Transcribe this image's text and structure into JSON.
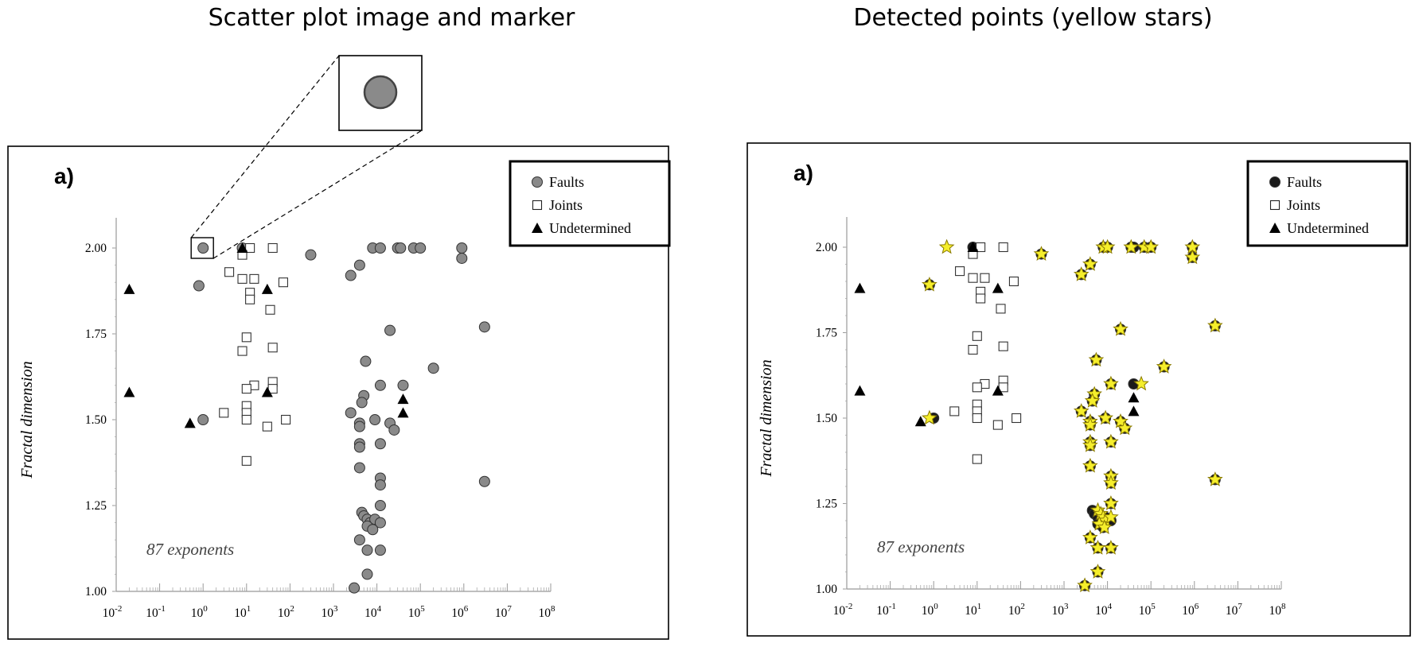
{
  "titles": {
    "left": "Scatter plot image and marker",
    "right": "Detected points (yellow stars)"
  },
  "panel_label": "a)",
  "annotation": "87 exponents",
  "ylabel": "Fractal dimension",
  "legend": [
    "Faults",
    "Joints",
    "Undetermined"
  ],
  "yticks": [
    "1.00",
    "1.25",
    "1.50",
    "1.75",
    "2.00"
  ],
  "xtick_exponents": [
    "-2",
    "-1",
    "0",
    "1",
    "2",
    "3",
    "4",
    "5",
    "6",
    "7",
    "8"
  ],
  "colors": {
    "fault_fill": "#8a8a8a",
    "fault_fill_detected": "#1a1a1a",
    "star": "#f5ee2c",
    "star_stroke": "#8a7a00"
  },
  "chart_data": [
    {
      "type": "scatter",
      "title": "Scatter plot image and marker",
      "xlabel": "",
      "ylabel": "Fractal dimension",
      "xscale": "log",
      "xlim": [
        0.01,
        100000000
      ],
      "ylim": [
        1.0,
        2.0
      ],
      "legend_position": "top-right",
      "series": [
        {
          "name": "Faults",
          "marker": "circle",
          "x": [
            1,
            0.8,
            1,
            8,
            300,
            2500,
            4000,
            8000,
            12000,
            30000,
            35000,
            70000,
            100000,
            900000,
            900000,
            3000000,
            3000000,
            5500,
            20000,
            12000,
            40000,
            200000,
            5000,
            4500,
            2500,
            4000,
            4000,
            9000,
            20000,
            25000,
            12000,
            4000,
            4000,
            4000,
            12000,
            12000,
            12000,
            4500,
            5000,
            6000,
            7000,
            9000,
            12000,
            6000,
            8000,
            4000,
            6000,
            12000,
            6000,
            3000
          ],
          "y": [
            2.0,
            1.89,
            1.5,
            2.0,
            1.98,
            1.92,
            1.95,
            2.0,
            2.0,
            2.0,
            2.0,
            2.0,
            2.0,
            2.0,
            1.97,
            1.77,
            1.32,
            1.67,
            1.76,
            1.6,
            1.6,
            1.65,
            1.57,
            1.55,
            1.52,
            1.49,
            1.48,
            1.5,
            1.49,
            1.47,
            1.43,
            1.43,
            1.42,
            1.36,
            1.33,
            1.31,
            1.25,
            1.23,
            1.22,
            1.21,
            1.2,
            1.21,
            1.2,
            1.19,
            1.18,
            1.15,
            1.12,
            1.12,
            1.05,
            1.01
          ]
        },
        {
          "name": "Joints",
          "marker": "square",
          "x": [
            12,
            40,
            4,
            8,
            15,
            8,
            70,
            12,
            12,
            35,
            10,
            40,
            8,
            15,
            40,
            10,
            40,
            10,
            10,
            3,
            10,
            80,
            30,
            10
          ],
          "y": [
            2.0,
            2.0,
            1.93,
            1.91,
            1.91,
            1.98,
            1.9,
            1.87,
            1.85,
            1.82,
            1.74,
            1.71,
            1.7,
            1.6,
            1.61,
            1.59,
            1.59,
            1.54,
            1.52,
            1.52,
            1.5,
            1.5,
            1.48,
            1.38
          ]
        },
        {
          "name": "Undetermined",
          "marker": "triangle",
          "x": [
            0.02,
            0.02,
            0.5,
            8,
            30,
            30,
            40000,
            40000
          ],
          "y": [
            1.88,
            1.58,
            1.49,
            2.0,
            1.88,
            1.58,
            1.56,
            1.52
          ]
        }
      ]
    },
    {
      "type": "scatter",
      "title": "Detected points (yellow stars)",
      "xlabel": "",
      "ylabel": "Fractal dimension",
      "xscale": "log",
      "xlim": [
        0.01,
        100000000
      ],
      "ylim": [
        1.0,
        2.0
      ],
      "legend_position": "top-right",
      "series": [
        {
          "name": "Faults",
          "marker": "circle",
          "x": [
            0.8,
            1,
            8,
            300,
            2500,
            4000,
            8000,
            10000,
            35000,
            40000,
            70000,
            100000,
            900000,
            900000,
            3000000,
            3000000,
            5500,
            20000,
            12000,
            40000,
            200000,
            5000,
            4500,
            2500,
            4000,
            4000,
            9000,
            20000,
            25000,
            12000,
            4000,
            4000,
            4000,
            12000,
            12000,
            12000,
            4500,
            5000,
            6000,
            7000,
            9000,
            12000,
            6000,
            8000,
            4000,
            6000,
            12000,
            6000,
            3000
          ],
          "y": [
            1.89,
            1.5,
            2.0,
            1.98,
            1.92,
            1.95,
            2.0,
            2.0,
            2.0,
            2.0,
            2.0,
            2.0,
            2.0,
            1.97,
            1.77,
            1.32,
            1.67,
            1.76,
            1.6,
            1.6,
            1.65,
            1.57,
            1.55,
            1.52,
            1.49,
            1.48,
            1.5,
            1.49,
            1.47,
            1.43,
            1.43,
            1.42,
            1.36,
            1.33,
            1.31,
            1.25,
            1.23,
            1.22,
            1.21,
            1.2,
            1.21,
            1.2,
            1.19,
            1.18,
            1.15,
            1.12,
            1.12,
            1.05,
            1.01
          ]
        },
        {
          "name": "Joints",
          "marker": "square",
          "x": [
            12,
            40,
            4,
            8,
            15,
            8,
            70,
            12,
            12,
            35,
            10,
            40,
            8,
            15,
            40,
            10,
            40,
            10,
            10,
            3,
            10,
            80,
            30,
            10
          ],
          "y": [
            2.0,
            2.0,
            1.93,
            1.91,
            1.91,
            1.98,
            1.9,
            1.87,
            1.85,
            1.82,
            1.74,
            1.71,
            1.7,
            1.6,
            1.61,
            1.59,
            1.59,
            1.54,
            1.52,
            1.52,
            1.5,
            1.5,
            1.48,
            1.38
          ]
        },
        {
          "name": "Undetermined",
          "marker": "triangle",
          "x": [
            0.02,
            0.02,
            0.5,
            8,
            30,
            30,
            40000,
            40000
          ],
          "y": [
            1.88,
            1.58,
            1.49,
            2.0,
            1.88,
            1.58,
            1.56,
            1.52
          ]
        }
      ],
      "detected_points": {
        "marker": "star",
        "x": [
          2,
          0.8,
          0.8,
          300,
          2500,
          4000,
          8000,
          10000,
          35000,
          70000,
          100000,
          900000,
          900000,
          3000000,
          3000000,
          5500,
          20000,
          12000,
          60000,
          200000,
          5000,
          4500,
          2500,
          4000,
          4000,
          9000,
          20000,
          25000,
          12000,
          4000,
          4000,
          4000,
          12000,
          12000,
          12000,
          6000,
          7000,
          8000,
          9000,
          12000,
          6500,
          8500,
          4000,
          6000,
          12000,
          6000,
          3000
        ],
        "y": [
          2.0,
          1.89,
          1.5,
          1.98,
          1.92,
          1.95,
          2.0,
          2.0,
          2.0,
          2.0,
          2.0,
          2.0,
          1.97,
          1.77,
          1.32,
          1.67,
          1.76,
          1.6,
          1.6,
          1.65,
          1.57,
          1.55,
          1.52,
          1.49,
          1.48,
          1.5,
          1.49,
          1.47,
          1.43,
          1.43,
          1.42,
          1.36,
          1.33,
          1.31,
          1.25,
          1.23,
          1.22,
          1.21,
          1.2,
          1.21,
          1.19,
          1.18,
          1.15,
          1.12,
          1.12,
          1.05,
          1.01
        ]
      }
    }
  ]
}
